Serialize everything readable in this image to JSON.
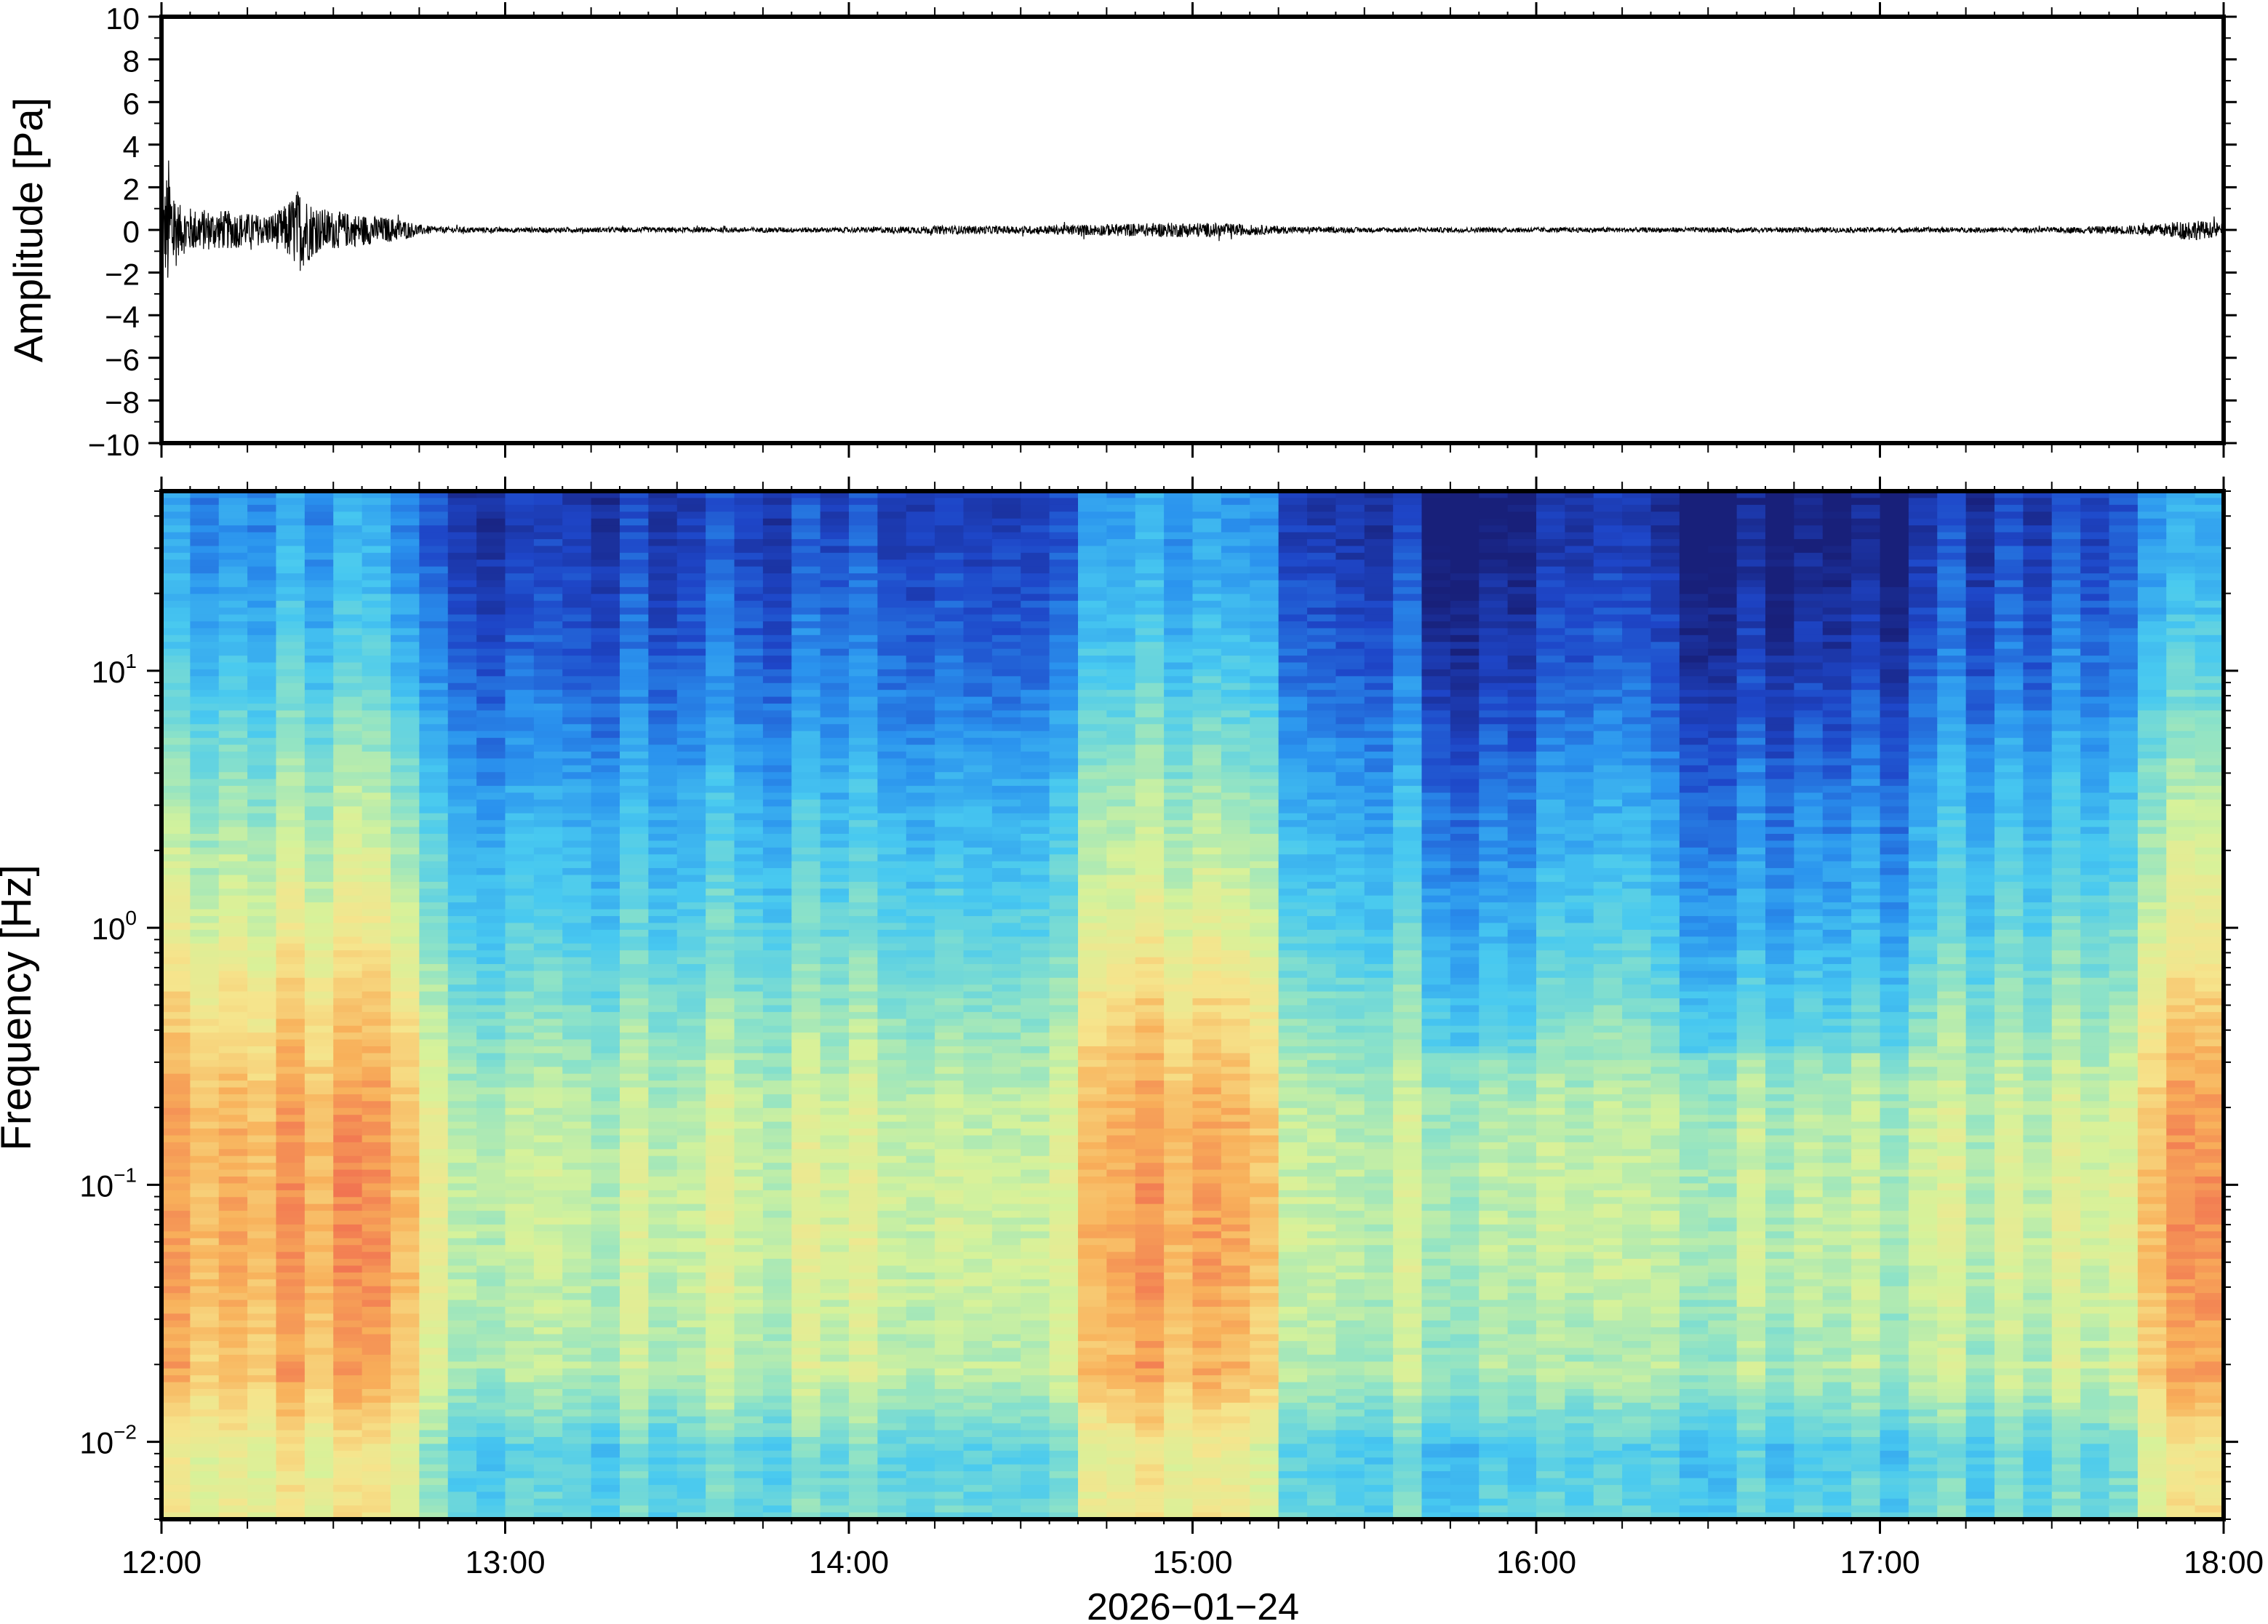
{
  "chart_data": [
    {
      "type": "line",
      "panel": "waveform",
      "ylabel": "Amplitude [Pa]",
      "ylim": [
        -10,
        10
      ],
      "yticks": [
        10,
        8,
        6,
        4,
        2,
        0,
        -2,
        -4,
        -6,
        -8,
        -10
      ],
      "ytick_labels": [
        "10",
        "8",
        "6",
        "4",
        "2",
        "0",
        "−2",
        "−4",
        "−6",
        "−8",
        "−10"
      ],
      "xlim": [
        "12:00",
        "18:00"
      ],
      "grid": false,
      "series": [
        {
          "color": "#000000",
          "envelope": {
            "time_hours": [
              0.0,
              0.02,
              0.05,
              0.1,
              0.2,
              0.3,
              0.35,
              0.4,
              0.45,
              0.5,
              0.6,
              0.7,
              0.75,
              0.8,
              1.0,
              1.5,
              2.0,
              2.3,
              2.5,
              2.8,
              3.0,
              3.1,
              3.3,
              3.5,
              4.0,
              4.5,
              5.0,
              5.5,
              5.8,
              5.9,
              6.0
            ],
            "amplitude_pa": [
              0.6,
              3.5,
              1.2,
              1.0,
              0.9,
              0.7,
              1.0,
              2.0,
              1.1,
              0.9,
              0.7,
              0.5,
              0.25,
              0.15,
              0.12,
              0.12,
              0.12,
              0.2,
              0.18,
              0.3,
              0.35,
              0.3,
              0.15,
              0.12,
              0.12,
              0.12,
              0.12,
              0.12,
              0.25,
              0.5,
              0.3
            ]
          }
        }
      ]
    },
    {
      "type": "heatmap",
      "panel": "spectrogram",
      "ylabel": "Frequency [Hz]",
      "xlabel": "2026−01−24",
      "yscale": "log",
      "ylim": [
        0.005,
        50
      ],
      "yticks": [
        0.01,
        0.1,
        1,
        10
      ],
      "ytick_labels": [
        {
          "base": "10",
          "exp": "−2"
        },
        {
          "base": "10",
          "exp": "−1"
        },
        {
          "base": "10",
          "exp": "0"
        },
        {
          "base": "10",
          "exp": "1"
        }
      ],
      "xticks": [
        "12:00",
        "13:00",
        "14:00",
        "15:00",
        "16:00",
        "17:00",
        "18:00"
      ],
      "colormap": [
        "#18207a",
        "#1e46c8",
        "#2a92ee",
        "#48c9f0",
        "#8ce2c8",
        "#d6f29a",
        "#f6e48c",
        "#f8b05a",
        "#f06a50"
      ],
      "intensity_profile": {
        "frequency_hz": [
          0.005,
          0.01,
          0.02,
          0.05,
          0.1,
          0.2,
          0.5,
          1,
          3,
          10,
          30,
          50
        ],
        "intensity_0_to_1": [
          0.45,
          0.42,
          0.58,
          0.62,
          0.62,
          0.6,
          0.5,
          0.42,
          0.33,
          0.2,
          0.12,
          0.1
        ]
      },
      "loud_intervals_hours": [
        [
          0.0,
          0.75
        ],
        [
          2.7,
          3.2
        ],
        [
          5.8,
          6.0
        ]
      ],
      "quiet_intervals_hours": [
        [
          3.7,
          4.0
        ],
        [
          4.4,
          5.1
        ]
      ]
    }
  ]
}
